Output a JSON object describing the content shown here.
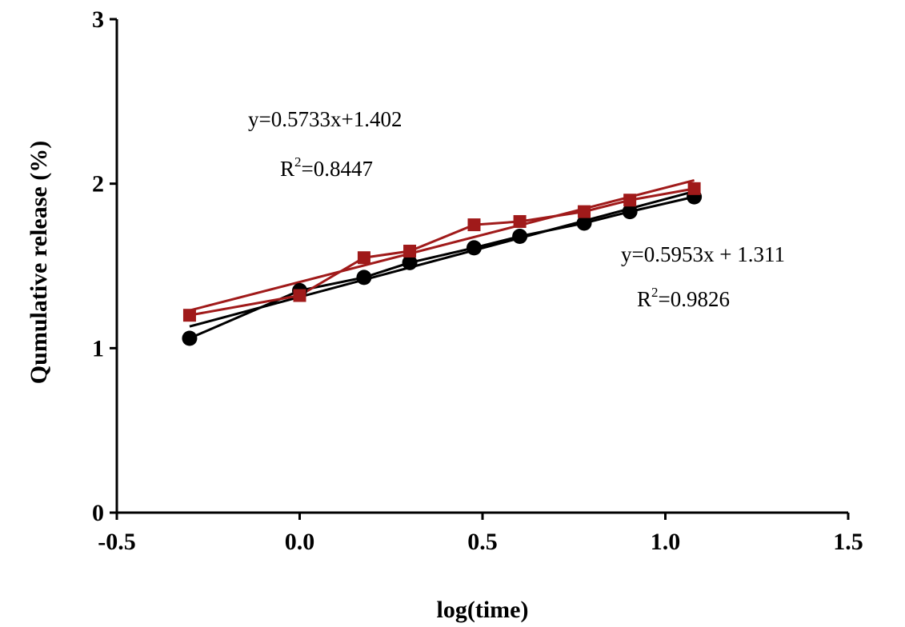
{
  "chart_data": {
    "type": "line",
    "xlabel": "log(time)",
    "ylabel": "Qumulative release (%)",
    "xlim": [
      -0.5,
      1.5
    ],
    "ylim": [
      0,
      3
    ],
    "xticks": [
      "-0.5",
      "0.0",
      "0.5",
      "1.0",
      "1.5"
    ],
    "yticks": [
      "0",
      "1",
      "2",
      "3"
    ],
    "grid": false,
    "colors": {
      "black": "#000000",
      "red": "#a01a1a"
    },
    "series": [
      {
        "color": "black",
        "marker": "circle",
        "x": [
          -0.301,
          0.0,
          0.176,
          0.301,
          0.477,
          0.602,
          0.778,
          0.903,
          1.079
        ],
        "y": [
          1.06,
          1.35,
          1.43,
          1.52,
          1.61,
          1.68,
          1.76,
          1.83,
          1.92
        ],
        "fit": {
          "slope": 0.5953,
          "intercept": 1.311
        }
      },
      {
        "color": "red",
        "marker": "square",
        "x": [
          -0.301,
          0.0,
          0.176,
          0.301,
          0.477,
          0.602,
          0.778,
          0.903,
          1.079
        ],
        "y": [
          1.2,
          1.32,
          1.55,
          1.59,
          1.75,
          1.77,
          1.83,
          1.9,
          1.97
        ],
        "fit": {
          "slope": 0.5733,
          "intercept": 1.402
        }
      }
    ],
    "annotations": [
      {
        "id": "red-eq",
        "text": "y=0.5733x+1.402"
      },
      {
        "id": "red-r2",
        "prefix": "R",
        "sup": "2",
        "value": "=0.8447"
      },
      {
        "id": "black-eq",
        "text": "y=0.5953x + 1.311"
      },
      {
        "id": "black-r2",
        "prefix": "R",
        "sup": "2",
        "value": "=0.9826"
      }
    ]
  }
}
